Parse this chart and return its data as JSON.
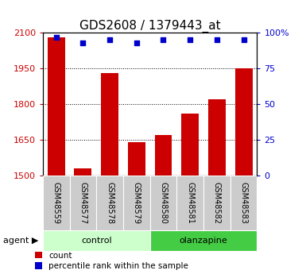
{
  "title": "GDS2608 / 1379443_at",
  "samples": [
    "GSM48559",
    "GSM48577",
    "GSM48578",
    "GSM48579",
    "GSM48580",
    "GSM48581",
    "GSM48582",
    "GSM48583"
  ],
  "counts": [
    2080,
    1530,
    1930,
    1640,
    1670,
    1760,
    1820,
    1950
  ],
  "percentiles": [
    97,
    93,
    95,
    93,
    95,
    95,
    95,
    95
  ],
  "ylim_left": [
    1500,
    2100
  ],
  "ylim_right": [
    0,
    100
  ],
  "yticks_left": [
    1500,
    1650,
    1800,
    1950,
    2100
  ],
  "yticks_right": [
    0,
    25,
    50,
    75,
    100
  ],
  "bar_color": "#cc0000",
  "dot_color": "#0000cc",
  "bar_width": 0.65,
  "groups": [
    {
      "label": "control",
      "samples": [
        0,
        1,
        2,
        3
      ],
      "color": "#ccffcc"
    },
    {
      "label": "olanzapine",
      "samples": [
        4,
        5,
        6,
        7
      ],
      "color": "#44cc44"
    }
  ],
  "sample_row_color": "#cccccc",
  "legend_count_label": "count",
  "legend_percentile_label": "percentile rank within the sample",
  "title_fontsize": 11,
  "tick_fontsize": 8,
  "axis_label_color_left": "#cc0000",
  "axis_label_color_right": "#0000cc"
}
